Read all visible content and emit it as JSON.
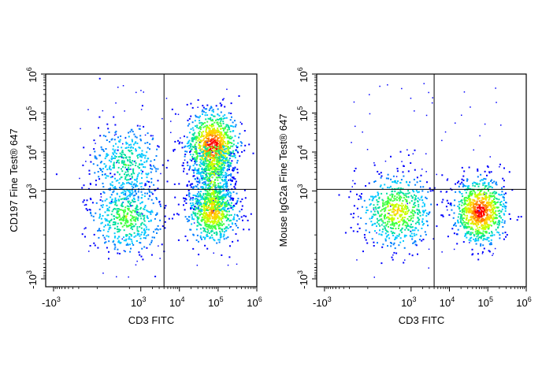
{
  "colors": {
    "density_scale": [
      "#0000ff",
      "#0080ff",
      "#00c8ff",
      "#00e0a0",
      "#40ff40",
      "#c8ff00",
      "#ffd000",
      "#ff8000",
      "#ff0000"
    ],
    "axis": "#000000",
    "gate": "#000000"
  },
  "chart_data": [
    {
      "type": "scatter",
      "plot_style": "flow-cytometry density dot plot",
      "xlabel": "CD3 FITC",
      "ylabel": "CD197 Fine Test® 647",
      "x_scale": "biexponential",
      "y_scale": "biexponential",
      "x_ticks": [
        {
          "value": -1000,
          "base": "-10",
          "exp": "3"
        },
        {
          "value": 1000,
          "base": "10",
          "exp": "3"
        },
        {
          "value": 10000,
          "base": "10",
          "exp": "4"
        },
        {
          "value": 100000,
          "base": "10",
          "exp": "5"
        },
        {
          "value": 1000000,
          "base": "10",
          "exp": "6"
        }
      ],
      "y_ticks": [
        {
          "value": -1000,
          "base": "-10",
          "exp": "3"
        },
        {
          "value": 1000,
          "base": "10",
          "exp": "3"
        },
        {
          "value": 10000,
          "base": "10",
          "exp": "4"
        },
        {
          "value": 100000,
          "base": "10",
          "exp": "5"
        },
        {
          "value": 1000000,
          "base": "10",
          "exp": "6"
        }
      ],
      "quadrant_gate": {
        "x": 4000,
        "y": 1100
      },
      "populations": [
        {
          "x_center": 400,
          "y_center": 5000,
          "relative_density": 0.45
        },
        {
          "x_center": 400,
          "y_center": 200,
          "relative_density": 0.55
        },
        {
          "x_center": 70000,
          "y_center": 15000,
          "relative_density": 1.0
        },
        {
          "x_center": 70000,
          "y_center": 300,
          "relative_density": 0.8
        }
      ]
    },
    {
      "type": "scatter",
      "plot_style": "flow-cytometry density dot plot",
      "xlabel": "CD3 FITC",
      "ylabel": "Mouse IgG2a Fine Test® 647",
      "x_scale": "biexponential",
      "y_scale": "biexponential",
      "x_ticks": [
        {
          "value": -1000,
          "base": "-10",
          "exp": "3"
        },
        {
          "value": 1000,
          "base": "10",
          "exp": "3"
        },
        {
          "value": 10000,
          "base": "10",
          "exp": "4"
        },
        {
          "value": 100000,
          "base": "10",
          "exp": "5"
        },
        {
          "value": 1000000,
          "base": "10",
          "exp": "6"
        }
      ],
      "y_ticks": [
        {
          "value": -1000,
          "base": "-10",
          "exp": "3"
        },
        {
          "value": 1000,
          "base": "10",
          "exp": "3"
        },
        {
          "value": 10000,
          "base": "10",
          "exp": "4"
        },
        {
          "value": 100000,
          "base": "10",
          "exp": "5"
        },
        {
          "value": 1000000,
          "base": "10",
          "exp": "6"
        }
      ],
      "quadrant_gate": {
        "x": 4000,
        "y": 1100
      },
      "populations": [
        {
          "x_center": 400,
          "y_center": 300,
          "relative_density": 0.7
        },
        {
          "x_center": 60000,
          "y_center": 300,
          "relative_density": 1.0
        }
      ]
    }
  ]
}
